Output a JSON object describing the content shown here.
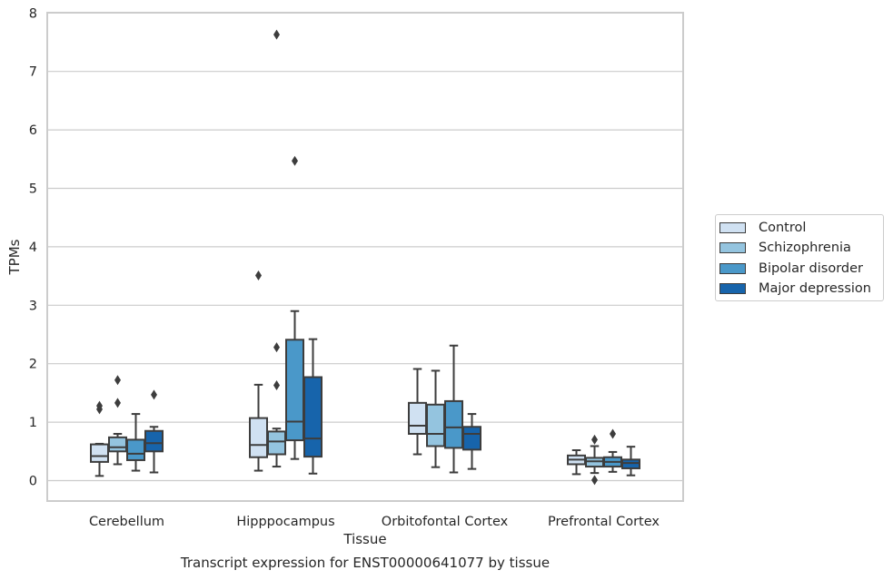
{
  "chart_data": {
    "type": "boxplot",
    "caption": "Transcript expression for ENST00000641077 by tissue",
    "xlabel": "Tissue",
    "ylabel": "TPMs",
    "ylim": [
      -0.35,
      8.0
    ],
    "yticks": [
      0,
      1,
      2,
      3,
      4,
      5,
      6,
      7,
      8
    ],
    "grid": true,
    "legend_position": "right",
    "categories": [
      "Cerebellum",
      "Hipppocampus",
      "Orbitofontal Cortex",
      "Prefrontal Cortex"
    ],
    "series": [
      {
        "name": "Control",
        "color": "#d0e1f2",
        "boxes": [
          {
            "whisker_low": 0.08,
            "q1": 0.32,
            "median": 0.42,
            "q3": 0.62,
            "whisker_high": 0.63,
            "outliers": [
              1.22,
              1.28
            ]
          },
          {
            "whisker_low": 0.17,
            "q1": 0.4,
            "median": 0.61,
            "q3": 1.07,
            "whisker_high": 1.64,
            "outliers": [
              3.51
            ]
          },
          {
            "whisker_low": 0.45,
            "q1": 0.8,
            "median": 0.94,
            "q3": 1.33,
            "whisker_high": 1.91,
            "outliers": []
          },
          {
            "whisker_low": 0.11,
            "q1": 0.28,
            "median": 0.36,
            "q3": 0.43,
            "whisker_high": 0.52,
            "outliers": []
          }
        ]
      },
      {
        "name": "Schizophrenia",
        "color": "#94c4df",
        "boxes": [
          {
            "whisker_low": 0.28,
            "q1": 0.5,
            "median": 0.57,
            "q3": 0.74,
            "whisker_high": 0.8,
            "outliers": [
              1.33,
              1.72
            ]
          },
          {
            "whisker_low": 0.24,
            "q1": 0.45,
            "median": 0.67,
            "q3": 0.84,
            "whisker_high": 0.89,
            "outliers": [
              1.63,
              2.28,
              7.63
            ]
          },
          {
            "whisker_low": 0.23,
            "q1": 0.59,
            "median": 0.8,
            "q3": 1.3,
            "whisker_high": 1.88,
            "outliers": []
          },
          {
            "whisker_low": 0.13,
            "q1": 0.24,
            "median": 0.33,
            "q3": 0.39,
            "whisker_high": 0.59,
            "outliers": [
              0.01,
              0.7
            ]
          }
        ]
      },
      {
        "name": "Bipolar disorder",
        "color": "#4a98c9",
        "boxes": [
          {
            "whisker_low": 0.17,
            "q1": 0.35,
            "median": 0.46,
            "q3": 0.7,
            "whisker_high": 1.14,
            "outliers": []
          },
          {
            "whisker_low": 0.37,
            "q1": 0.69,
            "median": 1.01,
            "q3": 2.41,
            "whisker_high": 2.9,
            "outliers": [
              5.47
            ]
          },
          {
            "whisker_low": 0.14,
            "q1": 0.56,
            "median": 0.91,
            "q3": 1.36,
            "whisker_high": 2.31,
            "outliers": []
          },
          {
            "whisker_low": 0.15,
            "q1": 0.24,
            "median": 0.32,
            "q3": 0.4,
            "whisker_high": 0.49,
            "outliers": [
              0.8
            ]
          }
        ]
      },
      {
        "name": "Major depression",
        "color": "#1764ab",
        "boxes": [
          {
            "whisker_low": 0.14,
            "q1": 0.5,
            "median": 0.64,
            "q3": 0.85,
            "whisker_high": 0.92,
            "outliers": [
              1.47
            ]
          },
          {
            "whisker_low": 0.12,
            "q1": 0.41,
            "median": 0.72,
            "q3": 1.77,
            "whisker_high": 2.42,
            "outliers": []
          },
          {
            "whisker_low": 0.2,
            "q1": 0.53,
            "median": 0.8,
            "q3": 0.92,
            "whisker_high": 1.14,
            "outliers": []
          },
          {
            "whisker_low": 0.09,
            "q1": 0.21,
            "median": 0.3,
            "q3": 0.36,
            "whisker_high": 0.58,
            "outliers": []
          }
        ]
      }
    ]
  }
}
